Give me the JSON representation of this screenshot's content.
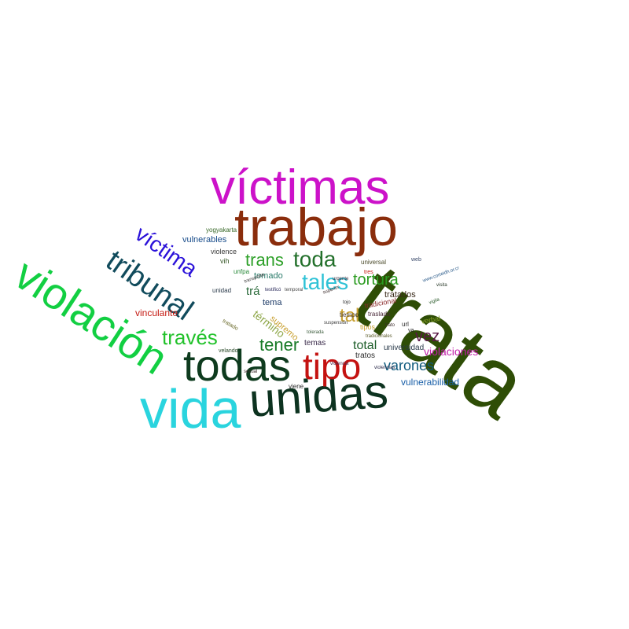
{
  "words": [
    {
      "text": "trata",
      "color": "#2e4d06"
    },
    {
      "text": "víctimas",
      "color": "#cc12c9"
    },
    {
      "text": "trabajo",
      "color": "#8a2d0c"
    },
    {
      "text": "violación",
      "color": "#12cf42"
    },
    {
      "text": "vida",
      "color": "#2ad4de"
    },
    {
      "text": "unidas",
      "color": "#0d3320"
    },
    {
      "text": "todas",
      "color": "#0e3b1e"
    },
    {
      "text": "tipo",
      "color": "#c41210"
    },
    {
      "text": "tribunal",
      "color": "#114b5c"
    },
    {
      "text": "víctima",
      "color": "#2b12d9"
    },
    {
      "text": "través",
      "color": "#22c22b"
    },
    {
      "text": "trans",
      "color": "#2fa12a"
    },
    {
      "text": "toda",
      "color": "#23702b"
    },
    {
      "text": "tales",
      "color": "#2ec2d6"
    },
    {
      "text": "tortura",
      "color": "#2a9b1f"
    },
    {
      "text": "tener",
      "color": "#177a26"
    },
    {
      "text": "tal",
      "color": "#c8a030"
    },
    {
      "text": "vez",
      "color": "#5a1a46"
    },
    {
      "text": "varones",
      "color": "#0f5a7d"
    },
    {
      "text": "total",
      "color": "#1e5e2a"
    },
    {
      "text": "violaciones",
      "color": "#c21ea9"
    },
    {
      "text": "vulnerabilidad",
      "color": "#195fa8"
    },
    {
      "text": "vinculante",
      "color": "#c41a12"
    },
    {
      "text": "término",
      "color": "#8fa84a"
    },
    {
      "text": "vulnerables",
      "color": "#174b8a"
    },
    {
      "text": "tomado",
      "color": "#2a7b6a"
    },
    {
      "text": "trá",
      "color": "#2a6a3a"
    },
    {
      "text": "tema",
      "color": "#1c3a66"
    },
    {
      "text": "tratados",
      "color": "#3a2a1a"
    },
    {
      "text": "universidad",
      "color": "#2a3a4a"
    },
    {
      "text": "supremo",
      "color": "#c8a030"
    },
    {
      "text": "temas",
      "color": "#3a2a4a"
    },
    {
      "text": "tratos",
      "color": "#2a2a2a"
    },
    {
      "text": "tradicional",
      "color": "#8a2a2a"
    },
    {
      "text": "tipos",
      "color": "#c8a030"
    },
    {
      "text": "verbal",
      "color": "#8aa32a"
    },
    {
      "text": "viene",
      "color": "#2a2a2a"
    },
    {
      "text": "violence",
      "color": "#3a3a3a"
    },
    {
      "text": "vih",
      "color": "#3a5a2a"
    },
    {
      "text": "unidad",
      "color": "#2a3a4a"
    },
    {
      "text": "unfpa",
      "color": "#2a8a3a"
    },
    {
      "text": "tiempo",
      "color": "#4a3a2a"
    },
    {
      "text": "traslado",
      "color": "#4a2a3a"
    },
    {
      "text": "yogyakarta",
      "color": "#3a6a2a"
    },
    {
      "text": "universal",
      "color": "#4a4a2a"
    },
    {
      "text": "url",
      "color": "#2a2a2a"
    },
    {
      "text": "web",
      "color": "#3a4a6a"
    },
    {
      "text": "tres",
      "color": "#c41a12"
    },
    {
      "text": "www.corteidh.or.cr",
      "color": "#2a5a8a"
    },
    {
      "text": "transporte",
      "color": "#3a3a3a"
    },
    {
      "text": "tratado",
      "color": "#6a6a2a"
    },
    {
      "text": "velando",
      "color": "#2a4a2a"
    },
    {
      "text": "superior",
      "color": "#3a2a2a"
    },
    {
      "text": "testificó",
      "color": "#2a2a5a"
    },
    {
      "text": "temporal",
      "color": "#4a4a4a"
    },
    {
      "text": "trato",
      "color": "#3a2a2a"
    },
    {
      "text": "tojo",
      "color": "#2a2a2a"
    },
    {
      "text": "va",
      "color": "#2a2a2a"
    },
    {
      "text": "violencia",
      "color": "#4a2a4a"
    },
    {
      "text": "tradicionales",
      "color": "#5a5a2a"
    },
    {
      "text": "vigila",
      "color": "#2a5a2a"
    },
    {
      "text": "suspensión",
      "color": "#3a3a3a"
    },
    {
      "text": "tolerada",
      "color": "#3a5a3a"
    },
    {
      "text": "violencias",
      "color": "#2a2a4a"
    },
    {
      "text": "sexual",
      "color": "#3a2a2a"
    },
    {
      "text": "visita",
      "color": "#2a3a2a"
    },
    {
      "text": "urgente",
      "color": "#3a2a3a"
    }
  ]
}
